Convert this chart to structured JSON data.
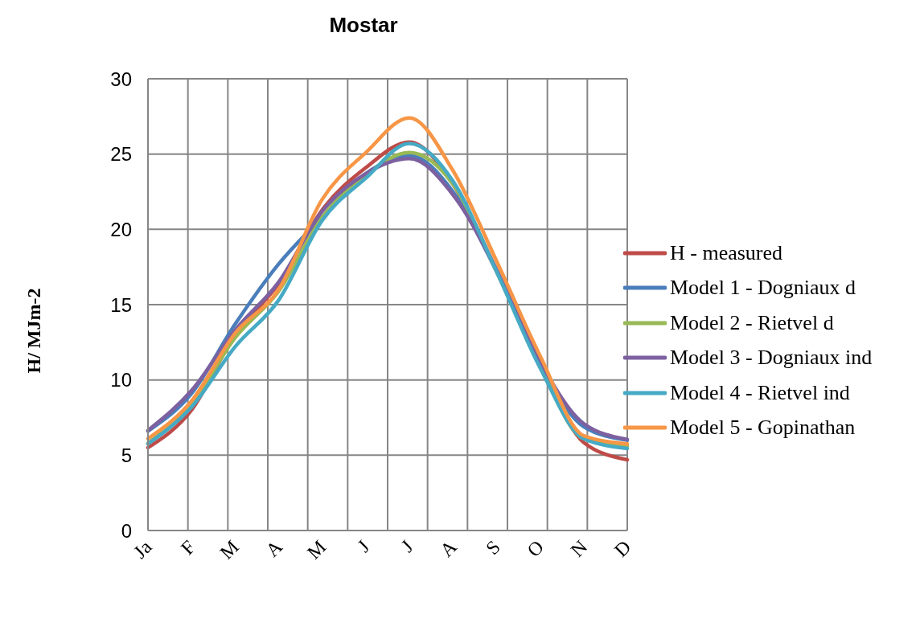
{
  "chart_data": {
    "type": "line",
    "title": "Mostar",
    "ylabel": "H/ MJm-2",
    "categories": [
      "Ja",
      "F",
      "M",
      "A",
      "M",
      "J",
      "J",
      "A",
      "S",
      "O",
      "N",
      "D"
    ],
    "series": [
      {
        "name": "H - measured",
        "color": "#be4b48",
        "values": [
          5.5,
          8.0,
          13.0,
          16.4,
          21.3,
          24.1,
          25.8,
          23.0,
          17.3,
          11.0,
          5.85,
          4.7
        ]
      },
      {
        "name": "Model 1 - Dogniaux d",
        "color": "#4a7ebb",
        "values": [
          6.6,
          9.1,
          13.7,
          17.7,
          20.8,
          23.7,
          24.9,
          22.5,
          17.2,
          11.0,
          6.9,
          6.0
        ]
      },
      {
        "name": "Model 2 - Rietvel d",
        "color": "#98b954",
        "values": [
          5.8,
          8.4,
          12.8,
          15.9,
          20.8,
          23.6,
          25.1,
          23.0,
          17.2,
          10.9,
          6.1,
          5.6
        ]
      },
      {
        "name": "Model 3 - Dogniaux ind",
        "color": "#7d60a0",
        "values": [
          6.65,
          9.3,
          13.3,
          16.5,
          21.2,
          23.7,
          24.7,
          22.3,
          17.3,
          11.2,
          7.1,
          6.05
        ]
      },
      {
        "name": "Model 4 - Rietvel ind",
        "color": "#46aac5",
        "values": [
          5.75,
          8.2,
          12.2,
          15.3,
          20.6,
          23.4,
          25.7,
          23.2,
          17.2,
          10.8,
          6.1,
          5.45
        ]
      },
      {
        "name": "Model 5 - Gopinathan",
        "color": "#f79646",
        "values": [
          6.1,
          8.6,
          13.1,
          16.0,
          22.0,
          25.1,
          27.4,
          23.9,
          17.9,
          11.6,
          6.3,
          5.75
        ]
      }
    ],
    "ylim": [
      0,
      30
    ],
    "yticks": [
      0,
      5,
      10,
      15,
      20,
      25,
      30
    ],
    "grid": true,
    "legend": "right",
    "marker": "none",
    "line_style": "solid"
  }
}
